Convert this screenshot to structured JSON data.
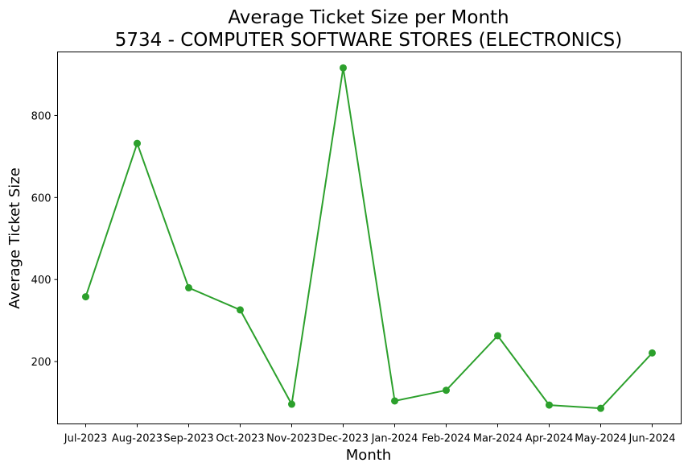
{
  "chart_data": {
    "type": "line",
    "title": "Average Ticket Size per Month",
    "subtitle": "5734 - COMPUTER SOFTWARE STORES (ELECTRONICS)",
    "xlabel": "Month",
    "ylabel": "Average Ticket Size",
    "categories": [
      "Jul-2023",
      "Aug-2023",
      "Sep-2023",
      "Oct-2023",
      "Nov-2023",
      "Dec-2023",
      "Jan-2024",
      "Feb-2024",
      "Mar-2024",
      "Apr-2024",
      "May-2024",
      "Jun-2024"
    ],
    "values": [
      358,
      732,
      380,
      326,
      96,
      916,
      104,
      130,
      263,
      94,
      86,
      221
    ],
    "yticks": [
      200,
      400,
      600,
      800
    ],
    "ylim": [
      48,
      955
    ],
    "grid": false,
    "color": "#2ca02c",
    "marker": "circle"
  }
}
